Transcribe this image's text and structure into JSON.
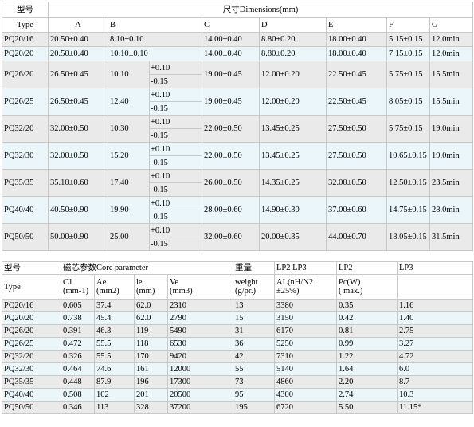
{
  "dim": {
    "model_cn": "型号",
    "title": "尺寸Dimensions(mm)",
    "type_label": "Type",
    "cols": [
      "A",
      "B",
      "C",
      "D",
      "E",
      "F",
      "G"
    ],
    "rows": [
      {
        "type": "PQ20/16",
        "A": "20.50±0.40",
        "B": "8.10±0.10",
        "C": "14.00±0.40",
        "D": "8.80±0.20",
        "E": "18.00±0.40",
        "F": "5.15±0.15",
        "G": "12.0min"
      },
      {
        "type": "PQ20/20",
        "A": "20.50±0.40",
        "B": "10.10±0.10",
        "C": "14.00±0.40",
        "D": "8.80±0.20",
        "E": "18.00±0.40",
        "F": "7.15±0.15",
        "G": "12.0min"
      },
      {
        "type": "PQ26/20",
        "A": "26.50±0.45",
        "B": "10.10",
        "Bp": "+0.10",
        "Bm": "-0.15",
        "C": "19.00±0.45",
        "D": "12.00±0.20",
        "E": "22.50±0.45",
        "F": "5.75±0.15",
        "G": "15.5min"
      },
      {
        "type": "PQ26/25",
        "A": "26.50±0.45",
        "B": "12.40",
        "Bp": "+0.10",
        "Bm": "-0.15",
        "C": "19.00±0.45",
        "D": "12.00±0.20",
        "E": "22.50±0.45",
        "F": "8.05±0.15",
        "G": "15.5min"
      },
      {
        "type": "PQ32/20",
        "A": "32.00±0.50",
        "B": "10.30",
        "Bp": "+0.10",
        "Bm": "-0.15",
        "C": "22.00±0.50",
        "D": "13.45±0.25",
        "E": "27.50±0.50",
        "F": "5.75±0.15",
        "G": "19.0min"
      },
      {
        "type": "PQ32/30",
        "A": "32.00±0.50",
        "B": "15.20",
        "Bp": "+0.10",
        "Bm": "-0.15",
        "C": "22.00±0.50",
        "D": "13.45±0.25",
        "E": "27.50±0.50",
        "F": "10.65±0.15",
        "G": "19.0min"
      },
      {
        "type": "PQ35/35",
        "A": "35.10±0.60",
        "B": "17.40",
        "Bp": "+0.10",
        "Bm": "-0.15",
        "C": "26.00±0.50",
        "D": "14.35±0.25",
        "E": "32.00±0.50",
        "F": "12.50±0.15",
        "G": "23.5min"
      },
      {
        "type": "PQ40/40",
        "A": "40.50±0.90",
        "B": "19.90",
        "Bp": "+0.10",
        "Bm": "-0.15",
        "C": "28.00±0.60",
        "D": "14.90±0.30",
        "E": "37.00±0.60",
        "F": "14.75±0.15",
        "G": "28.0min"
      },
      {
        "type": "PQ50/50",
        "A": "50.00±0.90",
        "B": "25.00",
        "Bp": "+0.10",
        "Bm": "-0.15",
        "C": "32.00±0.60",
        "D": "20.00±0.35",
        "E": "44.00±0.70",
        "F": "18.05±0.15",
        "G": "31.5min"
      }
    ]
  },
  "core": {
    "model_cn": "型号",
    "param_title": "磁芯参数Core parameter",
    "weight_cn": "重量",
    "lp2lp3": "LP2 LP3",
    "lp2": "LP2",
    "lp3": "LP3",
    "type_label": "Type",
    "c1": "C1",
    "c1u": "(mm-1)",
    "ae": "Ae",
    "aeu": "(mm2)",
    "le": "le",
    "leu": "(mm)",
    "ve": "Ve",
    "veu": "(mm3)",
    "wt": "weight",
    "wtu": "(g/pr.)",
    "al": "AL(nH/N2",
    "alu": "±25%)",
    "pc": "Pc(W)",
    "pcu": "( max.)",
    "rows": [
      {
        "type": "PQ20/16",
        "c1": "0.605",
        "ae": "37.4",
        "le": "62.0",
        "ve": "2310",
        "wt": "13",
        "al": "3380",
        "pc": "0.35",
        "lp3": "1.16"
      },
      {
        "type": "PQ20/20",
        "c1": "0.738",
        "ae": "45.4",
        "le": "62.0",
        "ve": "2790",
        "wt": "15",
        "al": "3150",
        "pc": "0.42",
        "lp3": "1.40"
      },
      {
        "type": "PQ26/20",
        "c1": "0.391",
        "ae": "46.3",
        "le": "119",
        "ve": "5490",
        "wt": "31",
        "al": "6170",
        "pc": "0.81",
        "lp3": "2.75"
      },
      {
        "type": "PQ26/25",
        "c1": "0.472",
        "ae": "55.5",
        "le": "118",
        "ve": "6530",
        "wt": "36",
        "al": "5250",
        "pc": "0.99",
        "lp3": "3.27"
      },
      {
        "type": "PQ32/20",
        "c1": "0.326",
        "ae": "55.5",
        "le": "170",
        "ve": "9420",
        "wt": "42",
        "al": "7310",
        "pc": "1.22",
        "lp3": "4.72"
      },
      {
        "type": "PQ32/30",
        "c1": "0.464",
        "ae": "74.6",
        "le": "161",
        "ve": "12000",
        "wt": "55",
        "al": "5140",
        "pc": "1.64",
        "lp3": "6.0"
      },
      {
        "type": "PQ35/35",
        "c1": "0.448",
        "ae": "87.9",
        "le": "196",
        "ve": "17300",
        "wt": "73",
        "al": "4860",
        "pc": "2.20",
        "lp3": "8.7"
      },
      {
        "type": "PQ40/40",
        "c1": "0.508",
        "ae": "102",
        "le": "201",
        "ve": "20500",
        "wt": "95",
        "al": "4300",
        "pc": "2.74",
        "lp3": "10.3"
      },
      {
        "type": "PQ50/50",
        "c1": "0.346",
        "ae": "113",
        "le": "328",
        "ve": "37200",
        "wt": "195",
        "al": "6720",
        "pc": "5.50",
        "lp3": "11.15*"
      }
    ]
  }
}
